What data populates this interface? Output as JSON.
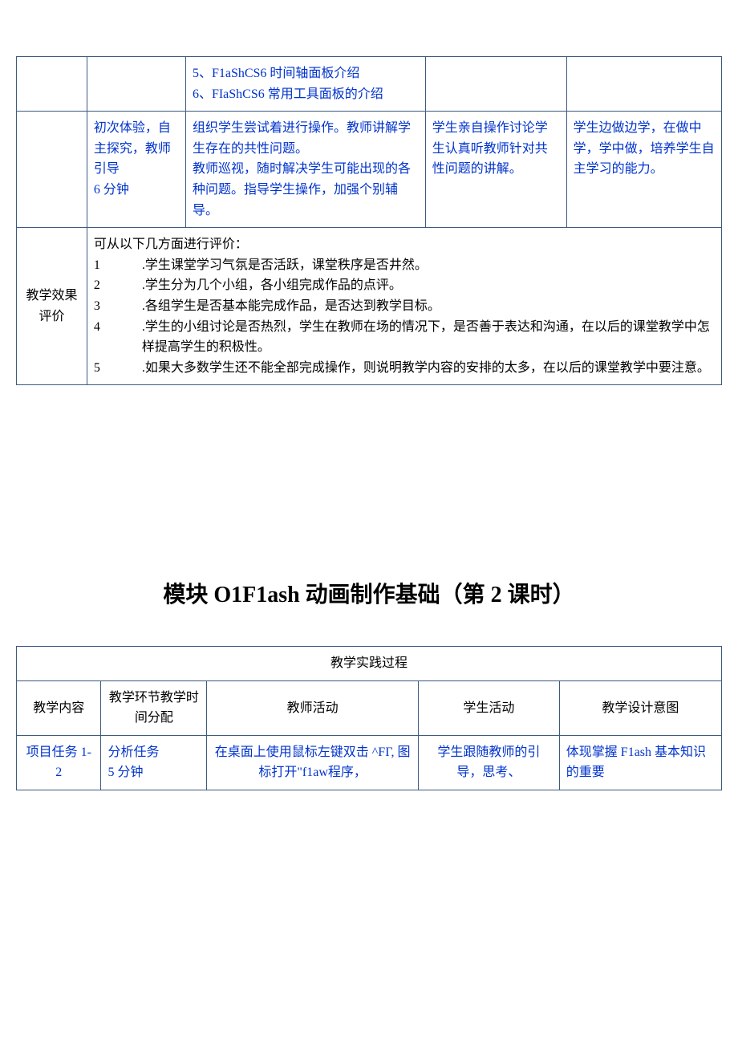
{
  "table1": {
    "row1": {
      "col3_line1": "5、F1aShCS6 时间轴面板介绍",
      "col3_line2": "6、FIaShCS6 常用工具面板的介绍"
    },
    "row2": {
      "col2": "初次体验，自主探究，教师引导\n6 分钟",
      "col3": "组织学生尝试着进行操作。教师讲解学生存在的共性问题。\n教师巡视，随时解决学生可能出现的各种问题。指导学生操作，加强个别辅导。",
      "col4": "学生亲自操作讨论学生认真听教师针对共性问题的讲解。",
      "col5": "学生边做边学，在做中学，学中做，培养学生自主学习的能力。"
    },
    "row3": {
      "col1": "教学效果评价",
      "intro": "可从以下几方面进行评价：",
      "items": [
        ".学生课堂学习气氛是否活跃，课堂秩序是否井然。",
        ".学生分为几个小组，各小组完成作品的点评。",
        ".各组学生是否基本能完成作品，是否达到教学目标。",
        ".学生的小组讨论是否热烈，学生在教师在场的情况下，是否善于表达和沟通，在以后的课堂教学中怎样提高学生的积极性。",
        ".如果大多数学生还不能全部完成操作，则说明教学内容的安排的太多，在以后的课堂教学中要注意。"
      ]
    }
  },
  "section_title": "模块 O1F1ash 动画制作基础（第 2 课时）",
  "table2": {
    "header_merged": "教学实践过程",
    "headers": {
      "h1": "教学内容",
      "h2": "教学环节教学时间分配",
      "h3": "教师活动",
      "h4": "学生活动",
      "h5": "教学设计意图"
    },
    "row1": {
      "c1": "项目任务 1-2",
      "c2": "分析任务\n5 分钟",
      "c3": "在桌面上使用鼠标左键双击 ^FΓ, 图标打开\"f1aw程序，",
      "c4": "学生跟随教师的引导，思考、",
      "c5": "体现掌握 F1ash 基本知识的重要"
    }
  }
}
